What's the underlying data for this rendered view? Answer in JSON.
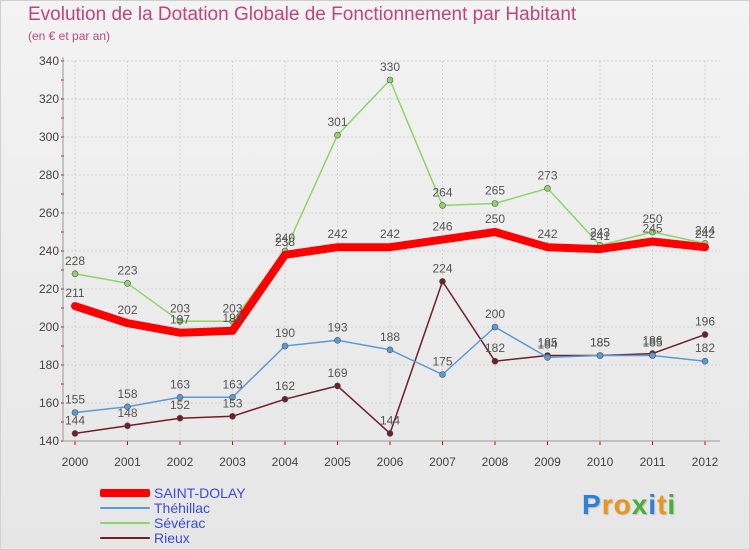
{
  "title": "Evolution de la Dotation Globale de Fonctionnement par Habitant",
  "subtitle": "(en € et par an)",
  "logo": {
    "letters": [
      {
        "ch": "P",
        "color": "#2f80d6"
      },
      {
        "ch": "r",
        "color": "#e8961a"
      },
      {
        "ch": "o",
        "color": "#e8961a"
      },
      {
        "ch": "x",
        "color": "#4caf3a"
      },
      {
        "ch": "i",
        "color": "#2f80d6"
      },
      {
        "ch": "t",
        "color": "#e8961a"
      },
      {
        "ch": "i",
        "color": "#4caf3a"
      }
    ]
  },
  "chart_data": {
    "type": "line",
    "title": "Evolution de la Dotation Globale de Fonctionnement par Habitant",
    "subtitle": "(en € et par an)",
    "xlabel": "",
    "ylabel": "",
    "x": [
      "2000",
      "2001",
      "2002",
      "2003",
      "2004",
      "2005",
      "2006",
      "2007",
      "2008",
      "2009",
      "2010",
      "2011",
      "2012"
    ],
    "ylim": [
      140,
      340
    ],
    "yticks": [
      140,
      160,
      180,
      200,
      220,
      240,
      260,
      280,
      300,
      320,
      340
    ],
    "grid": true,
    "legend_position": "bottom-left",
    "series": [
      {
        "name": "Sévérac",
        "color": "#8fd46a",
        "values": [
          228,
          223,
          203,
          203,
          240,
          301,
          330,
          264,
          265,
          273,
          243,
          250,
          244
        ]
      },
      {
        "name": "Rieux",
        "color": "#6e1f28",
        "values": [
          144,
          148,
          152,
          153,
          162,
          169,
          144,
          224,
          182,
          185,
          185,
          186,
          196
        ]
      },
      {
        "name": "Théhillac",
        "color": "#5b9bd5",
        "values": [
          155,
          158,
          163,
          163,
          190,
          193,
          188,
          175,
          200,
          184,
          185,
          185,
          182
        ]
      },
      {
        "name": "SAINT-DOLAY",
        "color": "#ff0000",
        "values": [
          211,
          202,
          197,
          198,
          238,
          242,
          242,
          246,
          250,
          242,
          241,
          245,
          242
        ]
      }
    ],
    "legend": [
      "SAINT-DOLAY",
      "Théhillac",
      "Sévérac",
      "Rieux"
    ]
  }
}
